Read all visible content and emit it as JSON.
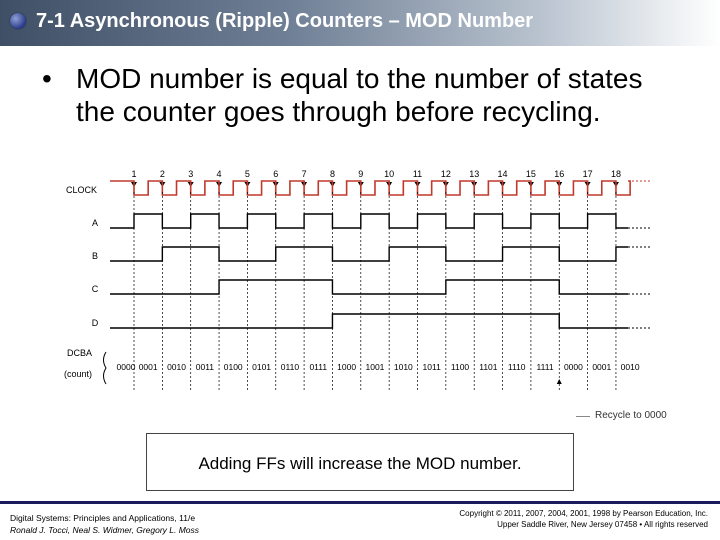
{
  "header": {
    "title": "7-1 Asynchronous (Ripple) Counters – MOD Number"
  },
  "content": {
    "bullet_mark": "•",
    "bullet": "MOD number is equal to the number of states the counter goes through before recycling.",
    "callout": "Adding FFs will increase the MOD number."
  },
  "diagram": {
    "pulse_numbers": [
      "1",
      "2",
      "3",
      "4",
      "5",
      "6",
      "7",
      "8",
      "9",
      "10",
      "11",
      "12",
      "13",
      "14",
      "15",
      "16",
      "17",
      "18"
    ],
    "signals": [
      "CLOCK",
      "A",
      "B",
      "C",
      "D"
    ],
    "count_label_line1": "DCBA",
    "count_label_line2": "(count)",
    "states": [
      "0000",
      "0001",
      "0010",
      "0011",
      "0100",
      "0101",
      "0110",
      "0111",
      "1000",
      "1001",
      "1010",
      "1011",
      "1100",
      "1101",
      "1110",
      "1111",
      "0000",
      "0001",
      "0010"
    ],
    "recycle_label": "Recycle to 0000",
    "colors": {
      "clock": "#c0392b",
      "signal": "#000000"
    }
  },
  "footer": {
    "left_line1": "Digital Systems: Principles and Applications, 11/e",
    "left_line2": "Ronald J. Tocci, Neal S. Widmer, Gregory L. Moss",
    "right_line1": "Copyright © 2011, 2007, 2004, 2001, 1998 by Pearson Education, Inc.",
    "right_line2": "Upper Saddle River, New Jersey 07458 • All rights reserved"
  }
}
